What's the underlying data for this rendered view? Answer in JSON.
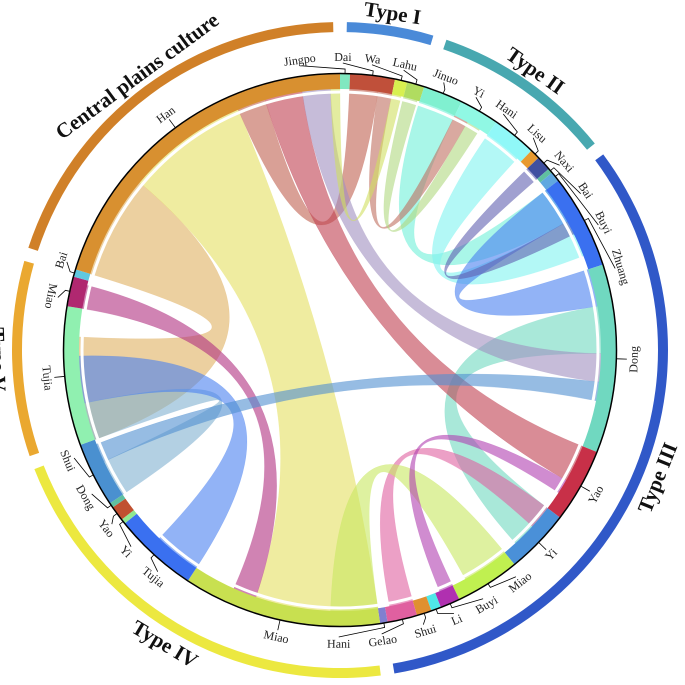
{
  "chart_data": {
    "type": "chord",
    "groups": [
      {
        "name": "Type I",
        "color": "#4a8ad8"
      },
      {
        "name": "Type II",
        "color": "#48a8b0"
      },
      {
        "name": "Type III",
        "color": "#3058c8"
      },
      {
        "name": "Type IV",
        "color": "#ece840"
      },
      {
        "name": "Type V",
        "color": "#eaa830"
      },
      {
        "name": "Central plains culture",
        "color": "#d08028"
      }
    ],
    "segments": [
      {
        "name": "Jingpo",
        "group": "Type I",
        "color": "#80e8c0",
        "value": 2
      },
      {
        "name": "Dai",
        "group": "Type I",
        "color": "#c0503a",
        "value": 9
      },
      {
        "name": "Wa",
        "group": "Type I",
        "color": "#d8f050",
        "value": 2.5
      },
      {
        "name": "Lahu",
        "group": "Type I",
        "color": "#b0dc60",
        "value": 3.5
      },
      {
        "name": "Jinuo",
        "group": "Type II",
        "color": "#80f0d0",
        "value": 8
      },
      {
        "name": "Yi",
        "group": "Type II",
        "color": "#90f8e4",
        "value": 8
      },
      {
        "name": "Hani",
        "group": "Type II",
        "color": "#90f8f8",
        "value": 9
      },
      {
        "name": "Lisu",
        "group": "Type II",
        "color": "#e89a30",
        "value": 2
      },
      {
        "name": "Naxi",
        "group": "Type II",
        "color": "#4050a0",
        "value": 3
      },
      {
        "name": "Bai",
        "group": "Type II",
        "color": "#60c0a0",
        "value": 1
      },
      {
        "name": "Buyi",
        "group": "Type II",
        "color": "#60a8e0",
        "value": 2
      },
      {
        "name": "Zhuang",
        "group": "Type III",
        "color": "#3a70f0",
        "value": 19
      },
      {
        "name": "Dong",
        "group": "Type III",
        "color": "#70d8c0",
        "value": 38
      },
      {
        "name": "Yao",
        "group": "Type III",
        "color": "#c83048",
        "value": 15
      },
      {
        "name": "Yi",
        "group": "Type III",
        "color": "#4a90d8",
        "value": 13
      },
      {
        "name": "Miao",
        "group": "Type III",
        "color": "#c0f050",
        "value": 13
      },
      {
        "name": "Buyi",
        "group": "Type III",
        "color": "#b030b0",
        "value": 4
      },
      {
        "name": "Li",
        "group": "Type III",
        "color": "#50e8e8",
        "value": 2
      },
      {
        "name": "Shui",
        "group": "Type III",
        "color": "#e09030",
        "value": 3
      },
      {
        "name": "Gelao",
        "group": "Type III",
        "color": "#e060a0",
        "value": 6
      },
      {
        "name": "Hani",
        "group": "Type III",
        "color": "#8080d0",
        "value": 1.5
      },
      {
        "name": "Miao",
        "group": "Type IV",
        "color": "#c8e050",
        "value": 40
      },
      {
        "name": "Tujia",
        "group": "Type IV",
        "color": "#3a70f0",
        "value": 17
      },
      {
        "name": "Yi",
        "group": "Type IV",
        "color": "#90e890",
        "value": 1
      },
      {
        "name": "Yao",
        "group": "Type IV",
        "color": "#c05030",
        "value": 3
      },
      {
        "name": "Dong",
        "group": "Type IV",
        "color": "#60c0a0",
        "value": 1
      },
      {
        "name": "Shui",
        "group": "Type IV",
        "color": "#4a90d0",
        "value": 13
      },
      {
        "name": "Tujia",
        "group": "Type V",
        "color": "#90f0b0",
        "value": 28
      },
      {
        "name": "Miao",
        "group": "Type V",
        "color": "#b02870",
        "value": 6
      },
      {
        "name": "Bai",
        "group": "Type V",
        "color": "#60c8e0",
        "value": 1.5
      },
      {
        "name": "Han",
        "group": "Central plains culture",
        "color": "#d89030",
        "value": 70
      }
    ],
    "links": [
      {
        "source": 30,
        "target": 27,
        "value": 22,
        "color": "#e0b060"
      },
      {
        "source": 30,
        "target": 21,
        "value": 26,
        "color": "#e4e060"
      },
      {
        "source": 1,
        "target": 30,
        "value": 6,
        "color": "#c06050"
      },
      {
        "source": 4,
        "target": 11,
        "value": 8,
        "color": "#70f0d8"
      },
      {
        "source": 6,
        "target": 11,
        "value": 8,
        "color": "#80f4f0"
      },
      {
        "source": 11,
        "target": 12,
        "value": 8,
        "color": "#4a80f0"
      },
      {
        "source": 12,
        "target": 14,
        "value": 10,
        "color": "#70d8c0"
      },
      {
        "source": 13,
        "target": 30,
        "value": 8,
        "color": "#c04050"
      },
      {
        "source": 12,
        "target": 30,
        "value": 6,
        "color": "#a090c0"
      },
      {
        "source": 27,
        "target": 26,
        "value": 8,
        "color": "#80b0d0"
      },
      {
        "source": 22,
        "target": 27,
        "value": 10,
        "color": "#4a80f0"
      },
      {
        "source": 28,
        "target": 21,
        "value": 5,
        "color": "#b03080"
      },
      {
        "source": 19,
        "target": 14,
        "value": 5,
        "color": "#e060a0"
      },
      {
        "source": 15,
        "target": 21,
        "value": 10,
        "color": "#c8e860"
      },
      {
        "source": 1,
        "target": 5,
        "value": 3,
        "color": "#c07060"
      },
      {
        "source": 8,
        "target": 11,
        "value": 3,
        "color": "#6060b0"
      },
      {
        "source": 26,
        "target": 12,
        "value": 4,
        "color": "#5090d0"
      },
      {
        "source": 16,
        "target": 13,
        "value": 3,
        "color": "#b040b0"
      },
      {
        "source": 2,
        "target": 30,
        "value": 2,
        "color": "#d0e060"
      },
      {
        "source": 3,
        "target": 5,
        "value": 3,
        "color": "#b0d880"
      }
    ]
  }
}
